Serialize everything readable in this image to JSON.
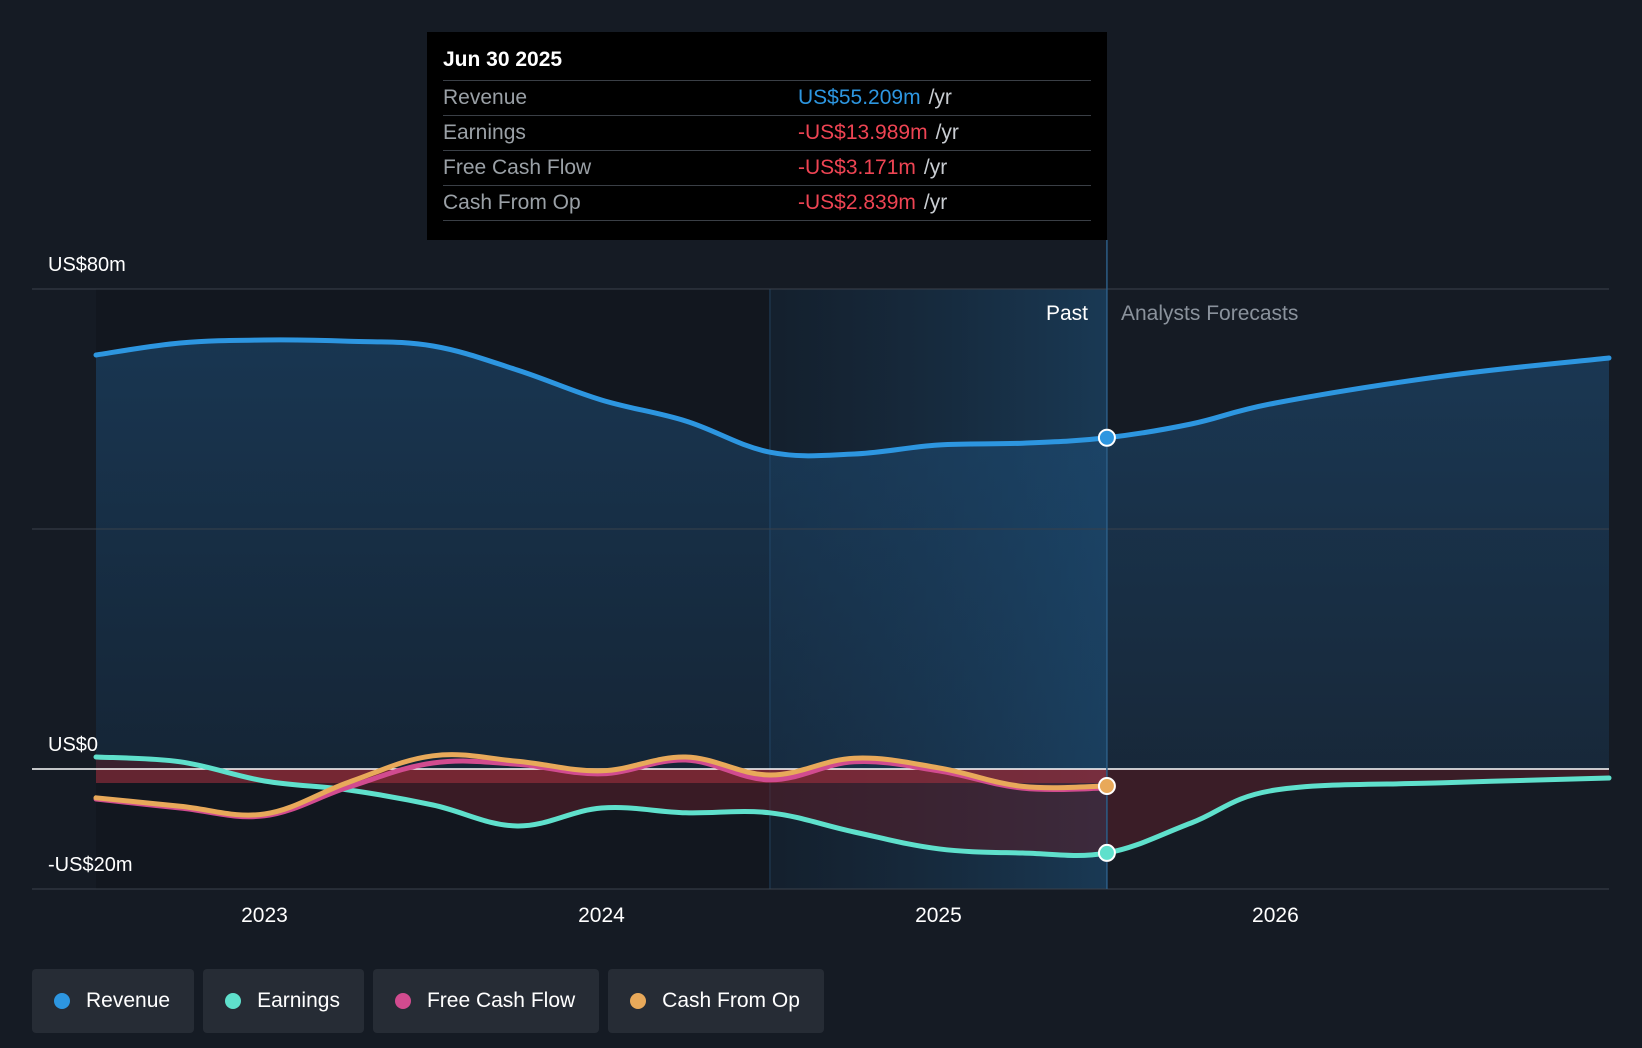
{
  "chart_data": {
    "type": "line",
    "title": "",
    "x_ticks": [
      2023,
      2024,
      2025,
      2026
    ],
    "x_range": [
      2022.5,
      2026.99
    ],
    "y_range": [
      -20,
      80
    ],
    "y_axis_labels": [
      {
        "value": 80,
        "label": "US$80m"
      },
      {
        "value": 0,
        "label": "US$0"
      },
      {
        "value": -20,
        "label": "-US$20m"
      }
    ],
    "divider_x": 2025.5,
    "past_label": "Past",
    "forecast_label": "Analysts Forecasts",
    "series": [
      {
        "name": "Revenue",
        "color": "#2d96e0",
        "points": [
          [
            2022.5,
            69.0
          ],
          [
            2022.75,
            71.0
          ],
          [
            2023.0,
            71.5
          ],
          [
            2023.25,
            71.3
          ],
          [
            2023.5,
            70.5
          ],
          [
            2023.75,
            66.5
          ],
          [
            2024.0,
            61.5
          ],
          [
            2024.25,
            58.0
          ],
          [
            2024.5,
            52.8
          ],
          [
            2024.75,
            52.5
          ],
          [
            2025.0,
            54.0
          ],
          [
            2025.25,
            54.3
          ],
          [
            2025.5,
            55.209
          ],
          [
            2025.75,
            57.5
          ],
          [
            2026.0,
            61.0
          ],
          [
            2026.5,
            65.5
          ],
          [
            2026.99,
            68.5
          ]
        ]
      },
      {
        "name": "Earnings",
        "color": "#5fe0cc",
        "points": [
          [
            2022.5,
            2.0
          ],
          [
            2022.75,
            1.2
          ],
          [
            2023.0,
            -2.0
          ],
          [
            2023.25,
            -3.5
          ],
          [
            2023.5,
            -6.0
          ],
          [
            2023.75,
            -9.5
          ],
          [
            2024.0,
            -6.5
          ],
          [
            2024.25,
            -7.3
          ],
          [
            2024.5,
            -7.3
          ],
          [
            2024.75,
            -10.5
          ],
          [
            2025.0,
            -13.3
          ],
          [
            2025.25,
            -14.0
          ],
          [
            2025.5,
            -13.989
          ],
          [
            2025.75,
            -9.0
          ],
          [
            2026.0,
            -3.5
          ],
          [
            2026.5,
            -2.3
          ],
          [
            2026.99,
            -1.5
          ]
        ]
      },
      {
        "name": "Free Cash Flow",
        "color": "#d14b8f",
        "points": [
          [
            2022.5,
            -5.0
          ],
          [
            2022.75,
            -6.5
          ],
          [
            2023.0,
            -7.8
          ],
          [
            2023.25,
            -3.0
          ],
          [
            2023.5,
            1.0
          ],
          [
            2023.75,
            0.8
          ],
          [
            2024.0,
            -0.8
          ],
          [
            2024.25,
            1.5
          ],
          [
            2024.5,
            -1.8
          ],
          [
            2024.75,
            1.2
          ],
          [
            2025.0,
            -0.3
          ],
          [
            2025.25,
            -3.2
          ],
          [
            2025.5,
            -3.171
          ]
        ]
      },
      {
        "name": "Cash From Op",
        "color": "#e8a95a",
        "points": [
          [
            2022.5,
            -4.8
          ],
          [
            2022.75,
            -6.2
          ],
          [
            2023.0,
            -7.5
          ],
          [
            2023.25,
            -2.2
          ],
          [
            2023.5,
            2.2
          ],
          [
            2023.75,
            1.3
          ],
          [
            2024.0,
            -0.3
          ],
          [
            2024.25,
            2.0
          ],
          [
            2024.5,
            -1.0
          ],
          [
            2024.75,
            1.8
          ],
          [
            2025.0,
            0.2
          ],
          [
            2025.25,
            -2.9
          ],
          [
            2025.5,
            -2.839
          ]
        ]
      }
    ]
  },
  "tooltip": {
    "date": "Jun 30 2025",
    "rows": [
      {
        "name": "Revenue",
        "value": "US$55.209m",
        "unit": "/yr",
        "color": "#2d96e0"
      },
      {
        "name": "Earnings",
        "value": "-US$13.989m",
        "unit": "/yr",
        "color": "#ee4453"
      },
      {
        "name": "Free Cash Flow",
        "value": "-US$3.171m",
        "unit": "/yr",
        "color": "#ee4453"
      },
      {
        "name": "Cash From Op",
        "value": "-US$2.839m",
        "unit": "/yr",
        "color": "#ee4453"
      }
    ]
  },
  "legend": [
    {
      "label": "Revenue",
      "color": "#2d96e0"
    },
    {
      "label": "Earnings",
      "color": "#5fe0cc"
    },
    {
      "label": "Free Cash Flow",
      "color": "#d14b8f"
    },
    {
      "label": "Cash From Op",
      "color": "#e8a95a"
    }
  ]
}
